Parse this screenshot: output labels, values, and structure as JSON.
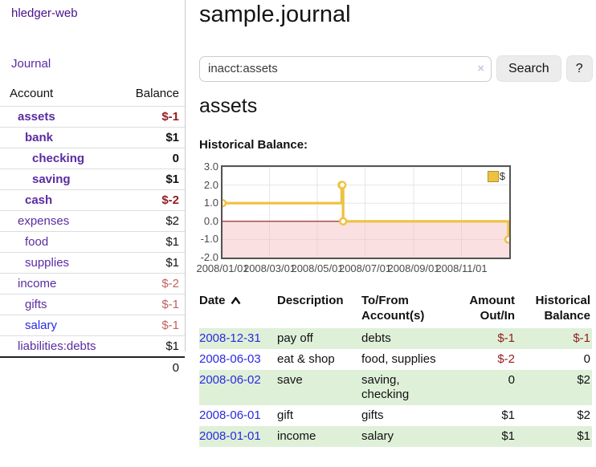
{
  "app": {
    "title": "hledger-web"
  },
  "sidebar": {
    "journal_link": "Journal",
    "accounts": {
      "header_account": "Account",
      "header_balance": "Balance",
      "rows": [
        {
          "name": "assets",
          "balance": "$-1"
        },
        {
          "name": "bank",
          "balance": "$1"
        },
        {
          "name": "checking",
          "balance": "0"
        },
        {
          "name": "saving",
          "balance": "$1"
        },
        {
          "name": "cash",
          "balance": "$-2"
        },
        {
          "name": "expenses",
          "balance": "$2"
        },
        {
          "name": "food",
          "balance": "$1"
        },
        {
          "name": "supplies",
          "balance": "$1"
        },
        {
          "name": "income",
          "balance": "$-2"
        },
        {
          "name": "gifts",
          "balance": "$-1"
        },
        {
          "name": "salary",
          "balance": "$-1"
        },
        {
          "name": "liabilities:debts",
          "balance": "$1"
        }
      ],
      "total": "0"
    }
  },
  "main": {
    "title": "sample.journal",
    "search": {
      "value": "inacct:assets",
      "clear_icon": "×",
      "button_label": "Search",
      "help_label": "?"
    },
    "account_heading": "assets",
    "chart_label": "Historical Balance:",
    "register": {
      "headers": {
        "date": "Date",
        "description": "Description",
        "accounts": "To/From Account(s)",
        "amount": "Amount Out/In",
        "balance": "Historical Balance"
      },
      "rows": [
        {
          "date": "2008-12-31",
          "description": "pay off",
          "accounts": "debts",
          "amount": "$-1",
          "balance": "$-1"
        },
        {
          "date": "2008-06-03",
          "description": "eat & shop",
          "accounts": "food, supplies",
          "amount": "$-2",
          "balance": "0"
        },
        {
          "date": "2008-06-02",
          "description": "save",
          "accounts": "saving, checking",
          "amount": "0",
          "balance": "$2"
        },
        {
          "date": "2008-06-01",
          "description": "gift",
          "accounts": "gifts",
          "amount": "$1",
          "balance": "$2"
        },
        {
          "date": "2008-01-01",
          "description": "income",
          "accounts": "salary",
          "amount": "$1",
          "balance": "$1"
        }
      ]
    }
  },
  "chart_data": {
    "type": "line",
    "title": "Historical Balance:",
    "step": true,
    "series": [
      {
        "name": "$",
        "color": "#EDC240",
        "points": [
          [
            "2008-01-01",
            1
          ],
          [
            "2008-06-01",
            2
          ],
          [
            "2008-06-02",
            2
          ],
          [
            "2008-06-03",
            0
          ],
          [
            "2008-12-31",
            -1
          ]
        ]
      }
    ],
    "x_range": [
      "2008-01-01",
      "2009-01-01"
    ],
    "ylim": [
      -2,
      3
    ],
    "y_ticks": [
      "3.0",
      "2.0",
      "1.0",
      "0.0",
      "-1.0",
      "-2.0"
    ],
    "x_ticks": [
      "2008/01/01",
      "2008/03/01",
      "2008/05/01",
      "2008/07/01",
      "2008/09/01",
      "2008/11/01"
    ],
    "legend_position": "top-right",
    "grid": true,
    "negative_region_color": "#f5baba",
    "zero_line_color": "#8b1a1a"
  },
  "colors": {
    "brand_purple": "#47128f",
    "link_purple": "#5a2ca0",
    "link_blue": "#2a2ae0",
    "negative_strong": "#941b1e",
    "negative_soft": "#c06261",
    "row_stripe_green": "#dff0d8",
    "chart_line": "#EDC240"
  }
}
